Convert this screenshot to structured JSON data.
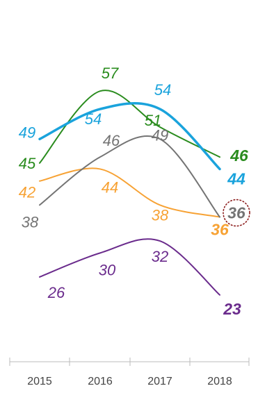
{
  "chart_data": {
    "type": "line",
    "categories": [
      "2015",
      "2016",
      "2017",
      "2018"
    ],
    "ylim": [
      18,
      62
    ],
    "grid": false,
    "legend": "none",
    "highlight": {
      "series_index": 3,
      "category_index": 3,
      "style": "dotted circle",
      "color": "#8b1a1a"
    },
    "series": [
      {
        "color": "#2a8c1e",
        "values": [
          45,
          57,
          51,
          46
        ],
        "labels": [
          "45",
          "57",
          "51",
          "46"
        ]
      },
      {
        "color": "#1aa3dc",
        "values": [
          49,
          54,
          54,
          44
        ],
        "labels": [
          "49",
          "54",
          "54",
          "44"
        ]
      },
      {
        "color": "#f7a234",
        "values": [
          42,
          44,
          38,
          36
        ],
        "labels": [
          "42",
          "44",
          "38",
          "36"
        ]
      },
      {
        "color": "#747474",
        "values": [
          38,
          46,
          49,
          36
        ],
        "labels": [
          "38",
          "46",
          "49",
          "36"
        ]
      },
      {
        "color": "#6a2b8c",
        "values": [
          26,
          30,
          32,
          23
        ],
        "labels": [
          "26",
          "30",
          "32",
          "23"
        ]
      }
    ]
  }
}
